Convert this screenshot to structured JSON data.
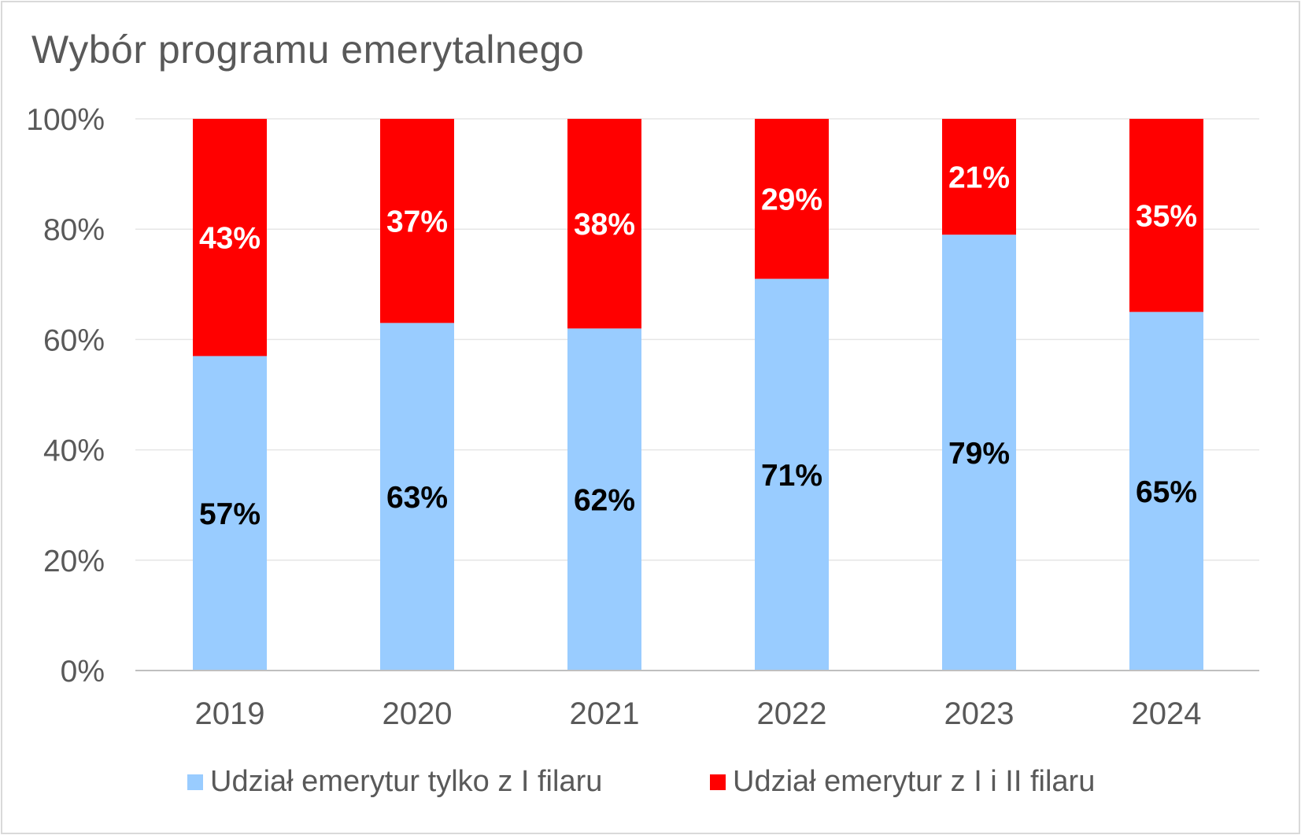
{
  "chart_data": {
    "type": "bar",
    "stacked": true,
    "title": "Wybór programu emerytalnego",
    "xlabel": "",
    "ylabel": "",
    "categories": [
      "2019",
      "2020",
      "2021",
      "2022",
      "2023",
      "2024"
    ],
    "series": [
      {
        "name": "Udział emerytur tylko z I filaru",
        "color": "#99CCFF",
        "label_color": "#000000",
        "values": [
          57,
          63,
          62,
          71,
          79,
          65
        ],
        "labels": [
          "57%",
          "63%",
          "62%",
          "71%",
          "79%",
          "65%"
        ]
      },
      {
        "name": "Udział emerytur z I i II filaru",
        "color": "#FF0000",
        "label_color": "#FFFFFF",
        "values": [
          43,
          37,
          38,
          29,
          21,
          35
        ],
        "labels": [
          "43%",
          "37%",
          "38%",
          "29%",
          "21%",
          "35%"
        ]
      }
    ],
    "ylim": [
      0,
      100
    ],
    "yticks": [
      0,
      20,
      40,
      60,
      80,
      100
    ],
    "ytick_labels": [
      "0%",
      "20%",
      "40%",
      "60%",
      "80%",
      "100%"
    ],
    "grid": true,
    "legend_position": "bottom"
  }
}
